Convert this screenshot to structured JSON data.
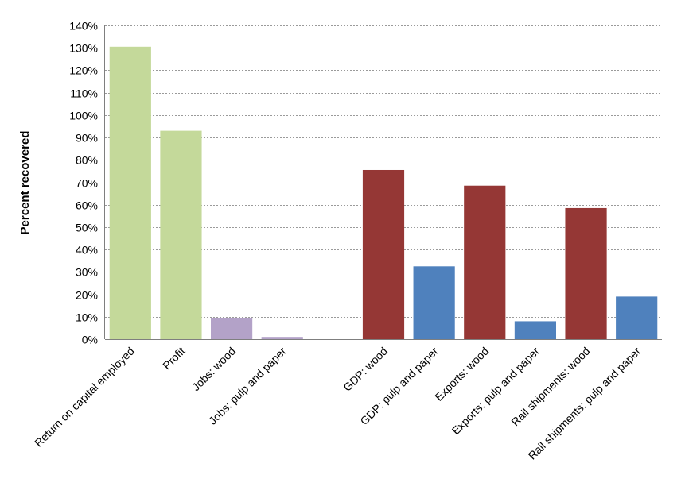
{
  "chart_data": {
    "type": "bar",
    "title": "",
    "xlabel": "",
    "ylabel": "Percent recovered",
    "ylim": [
      0,
      140
    ],
    "ytick_step": 10,
    "ytick_suffix": "%",
    "grid": true,
    "legend": "none",
    "categories": [
      "Return on capital employed",
      "Profit",
      "Jobs: wood",
      "Jobs: pulp and paper",
      "",
      "GDP: wood",
      "GDP: pulp and paper",
      "Exports: wood",
      "Exports: pulp and paper",
      "Rail shipments: wood",
      "Rail shipments: pulp and paper"
    ],
    "values": [
      130.5,
      93,
      9.5,
      1,
      null,
      75.5,
      32.5,
      68.5,
      8,
      58.5,
      19
    ],
    "colors": [
      "#c4d99a",
      "#c4d99a",
      "#b3a2c8",
      "#b3a2c8",
      null,
      "#953735",
      "#4f81bd",
      "#953735",
      "#4f81bd",
      "#953735",
      "#4f81bd"
    ]
  }
}
